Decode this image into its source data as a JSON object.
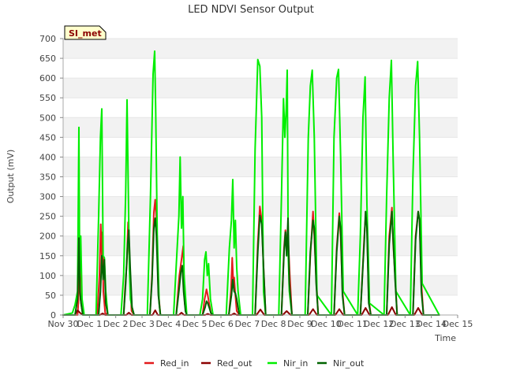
{
  "chart_data": {
    "type": "line",
    "title": "LED NDVI Sensor Output",
    "xlabel": "Time",
    "ylabel": "Output (mV)",
    "ylim": [
      0,
      700
    ],
    "xlim": [
      0,
      15
    ],
    "yticks": [
      0,
      50,
      100,
      150,
      200,
      250,
      300,
      350,
      400,
      450,
      500,
      550,
      600,
      650,
      700
    ],
    "xticks": [
      {
        "pos": 0,
        "label": "Nov 30"
      },
      {
        "pos": 1,
        "label": "Dec 1"
      },
      {
        "pos": 2,
        "label": "Dec 2"
      },
      {
        "pos": 3,
        "label": "Dec 3"
      },
      {
        "pos": 4,
        "label": "Dec 4"
      },
      {
        "pos": 5,
        "label": "Dec 5"
      },
      {
        "pos": 6,
        "label": "Dec 6"
      },
      {
        "pos": 7,
        "label": "Dec 7"
      },
      {
        "pos": 8,
        "label": "Dec 8"
      },
      {
        "pos": 9,
        "label": "Dec 9"
      },
      {
        "pos": 10,
        "label": "Dec 10"
      },
      {
        "pos": 11,
        "label": "Dec 11"
      },
      {
        "pos": 12,
        "label": "Dec 12"
      },
      {
        "pos": 13,
        "label": "Dec 13"
      },
      {
        "pos": 14,
        "label": "Dec 14"
      },
      {
        "pos": 15,
        "label": "Dec 15"
      }
    ],
    "grid": "horizontal bands",
    "legend_position": "bottom",
    "annotation": "SI_met",
    "series": [
      {
        "name": "Red_in",
        "color": "#e31a1c",
        "x": [
          0,
          0.55,
          0.58,
          0.62,
          0.66,
          0.75,
          1.3,
          1.38,
          1.43,
          1.47,
          1.5,
          1.53,
          1.6,
          1.7,
          2.3,
          2.35,
          2.42,
          2.47,
          2.52,
          2.6,
          2.7,
          3.3,
          3.38,
          3.45,
          3.5,
          3.55,
          3.62,
          3.7,
          4.3,
          4.42,
          4.5,
          4.57,
          4.62,
          4.7,
          5.3,
          5.38,
          5.45,
          5.5,
          5.55,
          5.62,
          5.7,
          6.3,
          6.38,
          6.43,
          6.47,
          6.5,
          6.55,
          6.6,
          6.7,
          7.3,
          7.4,
          7.48,
          7.55,
          7.62,
          7.7,
          8.3,
          8.4,
          8.45,
          8.5,
          8.55,
          8.62,
          8.7,
          9.3,
          9.4,
          9.5,
          9.55,
          9.62,
          9.7,
          10.3,
          10.4,
          10.5,
          10.55,
          10.62,
          10.7,
          11.3,
          11.45,
          11.5,
          11.55,
          11.62,
          11.7,
          12.3,
          12.4,
          12.5,
          12.55,
          12.62,
          12.7,
          13.3,
          13.4,
          13.5,
          13.55,
          13.62,
          13.7,
          14.3
        ],
        "values": [
          0,
          0,
          30,
          180,
          40,
          0,
          0,
          100,
          230,
          150,
          210,
          60,
          5,
          0,
          0,
          60,
          130,
          235,
          140,
          10,
          0,
          0,
          100,
          260,
          292,
          240,
          60,
          0,
          0,
          100,
          140,
          175,
          30,
          0,
          0,
          40,
          65,
          50,
          30,
          5,
          0,
          0,
          60,
          145,
          80,
          95,
          50,
          10,
          0,
          0,
          180,
          275,
          240,
          120,
          0,
          0,
          170,
          215,
          180,
          200,
          100,
          0,
          0,
          150,
          262,
          200,
          90,
          0,
          0,
          170,
          258,
          200,
          60,
          0,
          0,
          200,
          250,
          230,
          40,
          0,
          0,
          200,
          272,
          180,
          100,
          0,
          0,
          200,
          262,
          240,
          80,
          0,
          0
        ]
      },
      {
        "name": "Red_out",
        "color": "#8b0000",
        "x": [
          0,
          0.45,
          0.55,
          0.65,
          0.75,
          1.4,
          1.5,
          1.6,
          2.4,
          2.5,
          2.6,
          3.4,
          3.5,
          3.6,
          4.4,
          4.5,
          4.6,
          5.4,
          5.5,
          5.6,
          6.4,
          6.5,
          6.6,
          7.35,
          7.5,
          7.65,
          8.35,
          8.5,
          8.65,
          9.35,
          9.5,
          9.65,
          10.35,
          10.5,
          10.65,
          11.35,
          11.5,
          11.65,
          12.35,
          12.5,
          12.65,
          13.35,
          13.5,
          13.65,
          14.3
        ],
        "values": [
          0,
          0,
          12,
          5,
          0,
          0,
          4,
          0,
          0,
          6,
          0,
          0,
          12,
          0,
          0,
          6,
          0,
          0,
          3,
          0,
          0,
          4,
          0,
          0,
          14,
          0,
          0,
          10,
          0,
          0,
          15,
          0,
          0,
          15,
          0,
          0,
          18,
          0,
          0,
          20,
          0,
          0,
          18,
          0,
          0
        ]
      },
      {
        "name": "Nir_in",
        "color": "#00ee00",
        "x": [
          0,
          0.35,
          0.45,
          0.55,
          0.6,
          0.63,
          0.67,
          0.72,
          0.8,
          1.25,
          1.35,
          1.42,
          1.47,
          1.52,
          1.57,
          1.62,
          1.7,
          2.2,
          2.3,
          2.38,
          2.43,
          2.48,
          2.52,
          2.56,
          2.65,
          2.7,
          3.2,
          3.32,
          3.42,
          3.48,
          3.52,
          3.58,
          3.65,
          3.7,
          4.2,
          4.32,
          4.4,
          4.45,
          4.5,
          4.55,
          4.6,
          4.7,
          5.2,
          5.3,
          5.38,
          5.43,
          5.48,
          5.53,
          5.6,
          5.7,
          6.2,
          6.32,
          6.4,
          6.45,
          6.5,
          6.55,
          6.6,
          6.65,
          6.75,
          7.2,
          7.3,
          7.4,
          7.48,
          7.55,
          7.62,
          7.7,
          8.2,
          8.3,
          8.38,
          8.43,
          8.48,
          8.52,
          8.56,
          8.6,
          8.7,
          9.2,
          9.32,
          9.4,
          9.47,
          9.55,
          9.65,
          10.2,
          10.3,
          10.4,
          10.47,
          10.55,
          10.65,
          11.2,
          11.3,
          11.4,
          11.48,
          11.55,
          11.65,
          12.2,
          12.3,
          12.4,
          12.48,
          12.55,
          12.65,
          13.2,
          13.3,
          13.4,
          13.48,
          13.55,
          13.65,
          14.3
        ],
        "values": [
          0,
          5,
          25,
          60,
          475,
          100,
          200,
          40,
          0,
          0,
          250,
          450,
          522,
          150,
          145,
          60,
          0,
          0,
          100,
          310,
          545,
          300,
          120,
          40,
          10,
          0,
          0,
          300,
          610,
          668,
          520,
          200,
          30,
          0,
          0,
          150,
          250,
          400,
          220,
          300,
          100,
          0,
          0,
          40,
          140,
          160,
          100,
          130,
          40,
          0,
          0,
          170,
          240,
          343,
          170,
          240,
          120,
          60,
          0,
          0,
          420,
          647,
          630,
          500,
          60,
          0,
          0,
          300,
          548,
          450,
          520,
          620,
          150,
          60,
          0,
          0,
          450,
          580,
          620,
          450,
          50,
          0,
          450,
          600,
          622,
          400,
          60,
          0,
          200,
          500,
          603,
          280,
          30,
          0,
          300,
          550,
          645,
          390,
          60,
          0,
          350,
          580,
          642,
          450,
          80,
          0
        ]
      },
      {
        "name": "Nir_out",
        "color": "#006400",
        "x": [
          0,
          0.45,
          0.55,
          0.6,
          0.64,
          0.68,
          0.75,
          1.35,
          1.42,
          1.47,
          1.52,
          1.57,
          1.62,
          1.7,
          2.3,
          2.38,
          2.45,
          2.5,
          2.55,
          2.62,
          2.7,
          3.3,
          3.38,
          3.45,
          3.5,
          3.55,
          3.62,
          3.7,
          4.3,
          4.4,
          4.48,
          4.53,
          4.58,
          4.65,
          4.7,
          5.3,
          5.4,
          5.45,
          5.5,
          5.55,
          5.62,
          5.7,
          6.3,
          6.4,
          6.45,
          6.5,
          6.55,
          6.6,
          6.7,
          7.3,
          7.4,
          7.48,
          7.55,
          7.62,
          7.7,
          8.3,
          8.4,
          8.45,
          8.5,
          8.55,
          8.6,
          8.7,
          9.3,
          9.4,
          9.5,
          9.55,
          9.62,
          9.7,
          10.3,
          10.4,
          10.5,
          10.55,
          10.62,
          10.7,
          11.3,
          11.45,
          11.5,
          11.55,
          11.62,
          11.7,
          12.3,
          12.4,
          12.5,
          12.55,
          12.62,
          12.7,
          13.3,
          13.4,
          13.5,
          13.55,
          13.62,
          13.7,
          14.3
        ],
        "values": [
          0,
          0,
          40,
          195,
          60,
          30,
          0,
          0,
          60,
          150,
          90,
          140,
          30,
          0,
          0,
          80,
          180,
          215,
          120,
          20,
          0,
          0,
          90,
          220,
          245,
          200,
          50,
          0,
          0,
          60,
          110,
          125,
          60,
          10,
          0,
          0,
          20,
          35,
          30,
          20,
          5,
          0,
          0,
          50,
          90,
          60,
          55,
          40,
          0,
          0,
          160,
          252,
          230,
          120,
          0,
          0,
          160,
          210,
          150,
          245,
          80,
          0,
          0,
          160,
          240,
          220,
          80,
          0,
          0,
          160,
          250,
          220,
          50,
          0,
          0,
          190,
          262,
          220,
          30,
          0,
          0,
          180,
          262,
          190,
          90,
          0,
          0,
          190,
          262,
          240,
          60,
          0,
          0
        ]
      }
    ]
  }
}
